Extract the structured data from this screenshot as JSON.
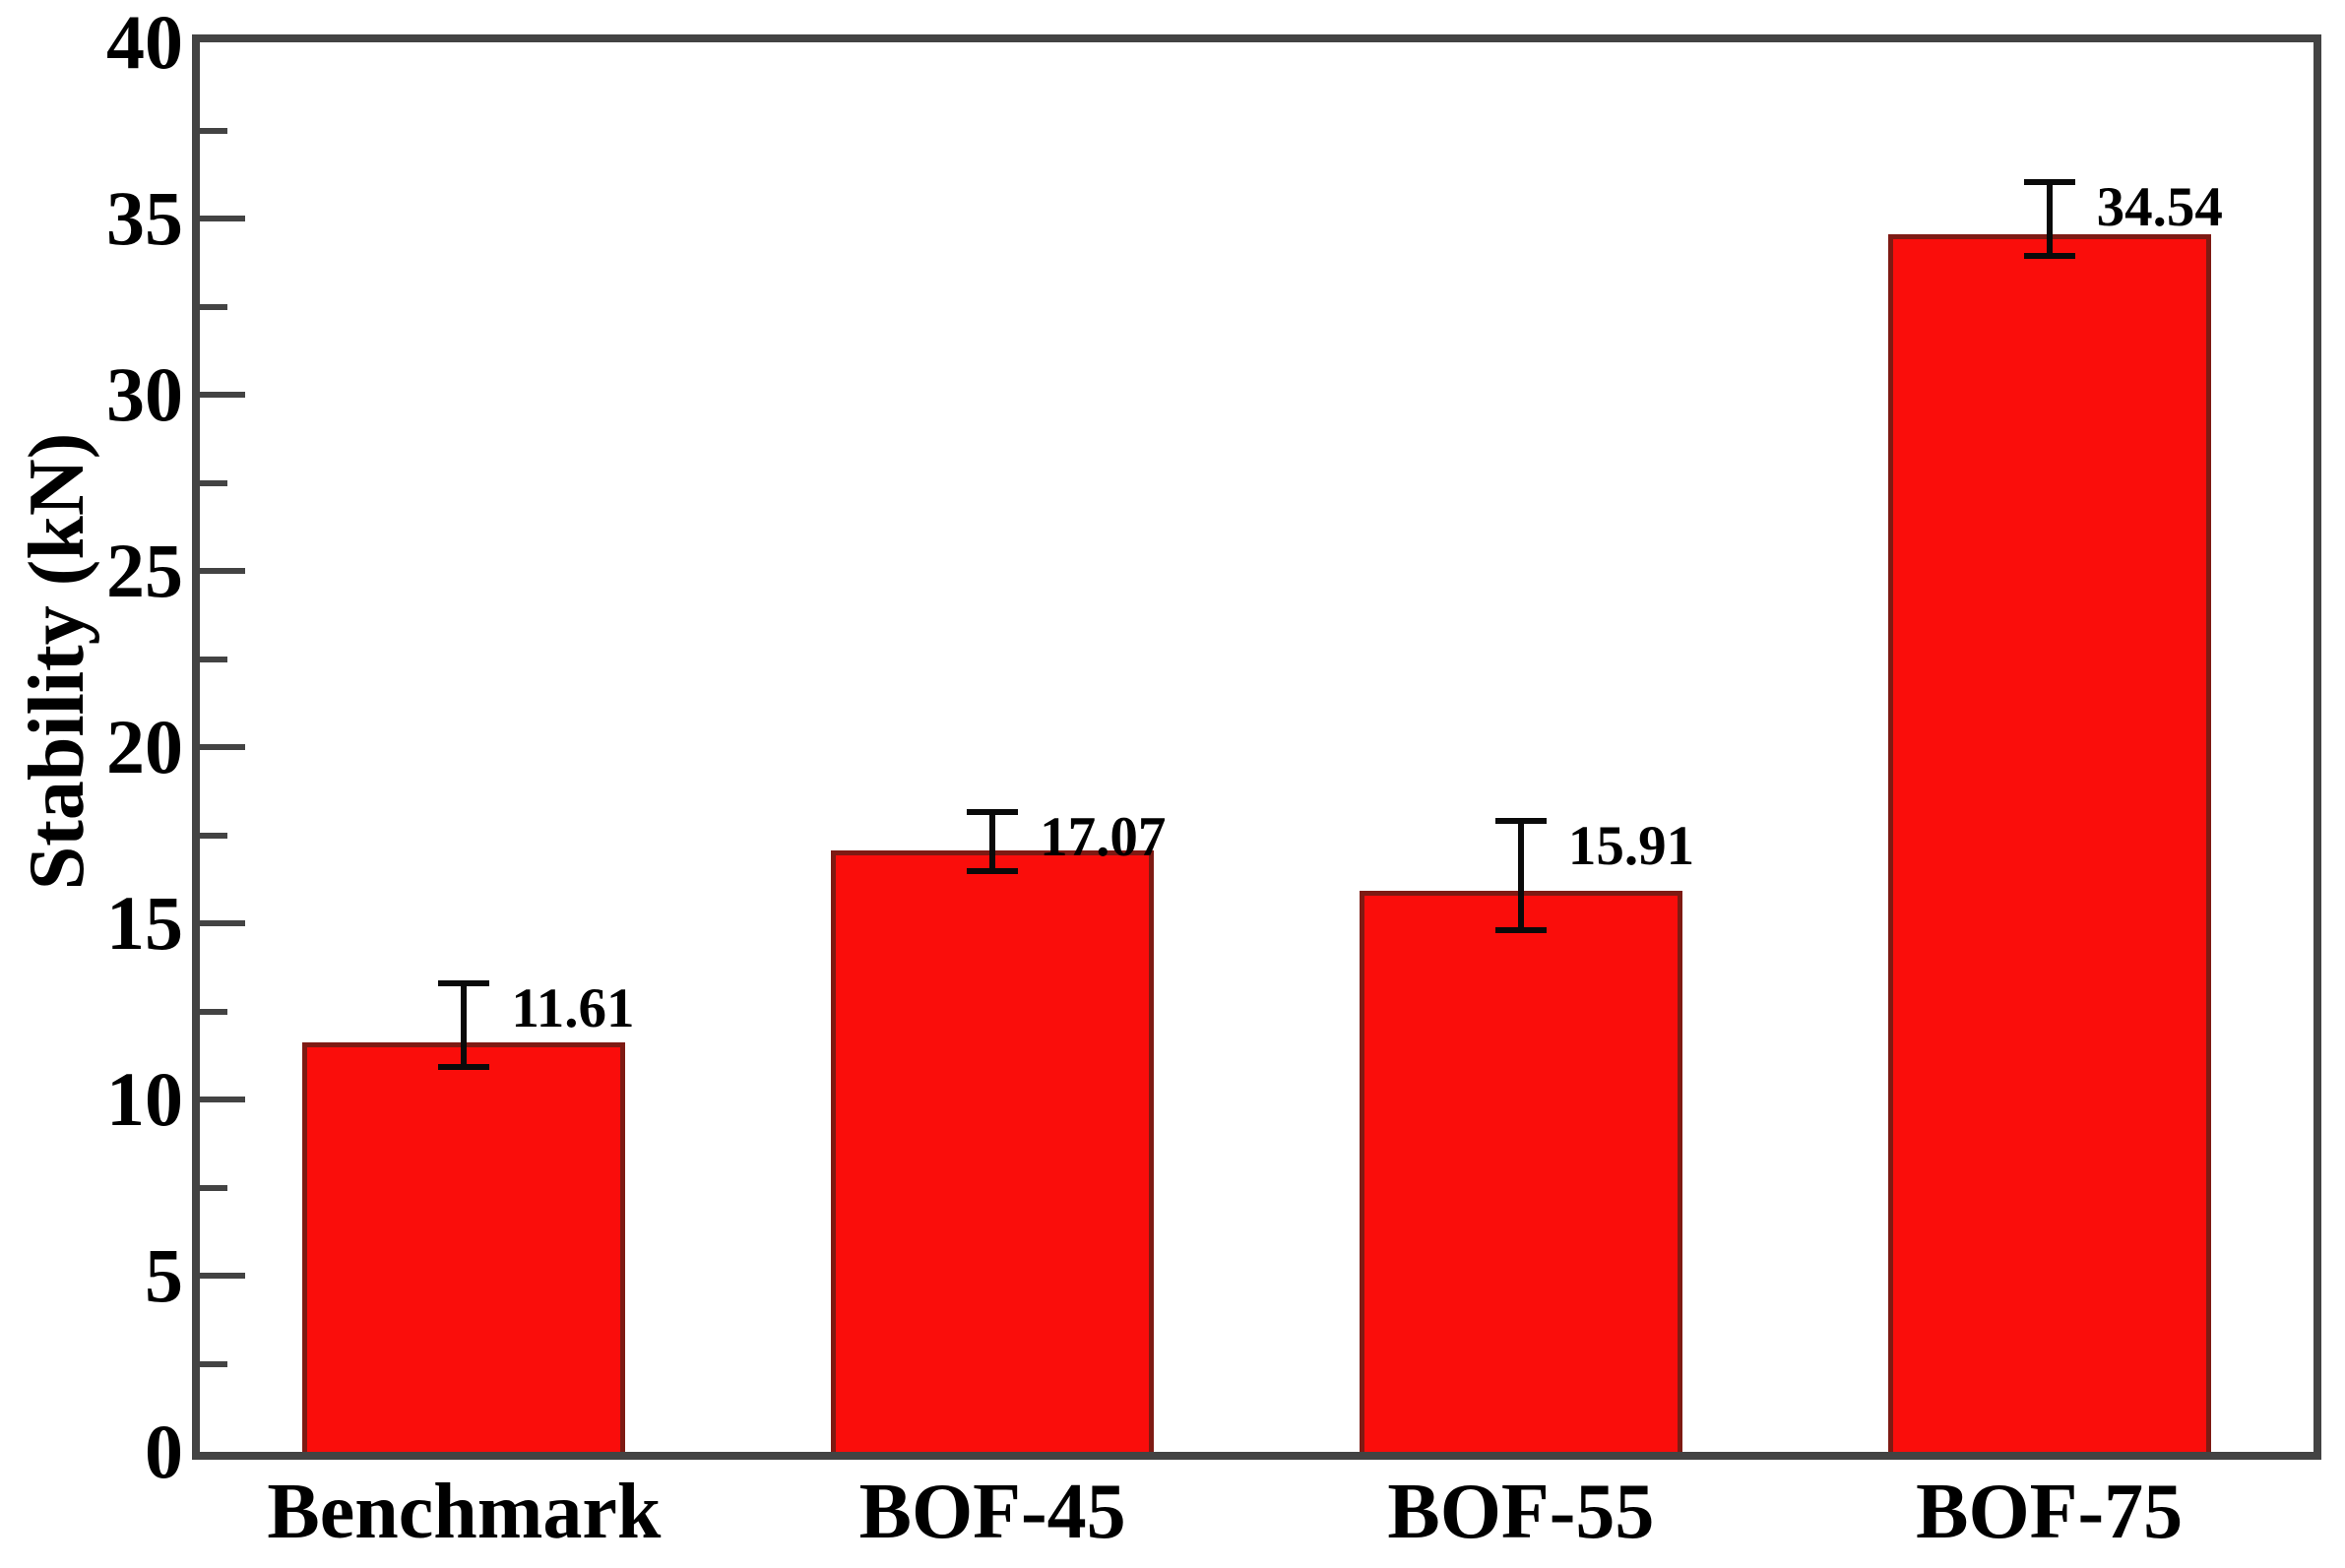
{
  "figure": {
    "background": "#ffffff",
    "axis_color": "#434343",
    "text_color": "#000000"
  },
  "chart_data": {
    "type": "bar",
    "title": "",
    "xlabel": "",
    "ylabel": "Stability (kN)",
    "categories": [
      "Benchmark",
      "BOF-45",
      "BOF-55",
      "BOF-75"
    ],
    "values": [
      11.61,
      17.07,
      15.91,
      34.54
    ],
    "value_labels": [
      "11.61",
      "17.07",
      "15.91",
      "34.54"
    ],
    "error_up": [
      1.7,
      1.1,
      2.0,
      1.5
    ],
    "error_down": [
      0.7,
      0.6,
      1.1,
      0.6
    ],
    "ylim": [
      0,
      40
    ],
    "ytick_major": 5,
    "ytick_minor": 2.5,
    "yticks": [
      "0",
      "5",
      "10",
      "15",
      "20",
      "25",
      "30",
      "35",
      "40"
    ],
    "grid": false,
    "legend": null,
    "bar_color": "#FA0D0B",
    "bar_edge_color": "#7E1A13",
    "error_color": "#0a0a0a"
  }
}
